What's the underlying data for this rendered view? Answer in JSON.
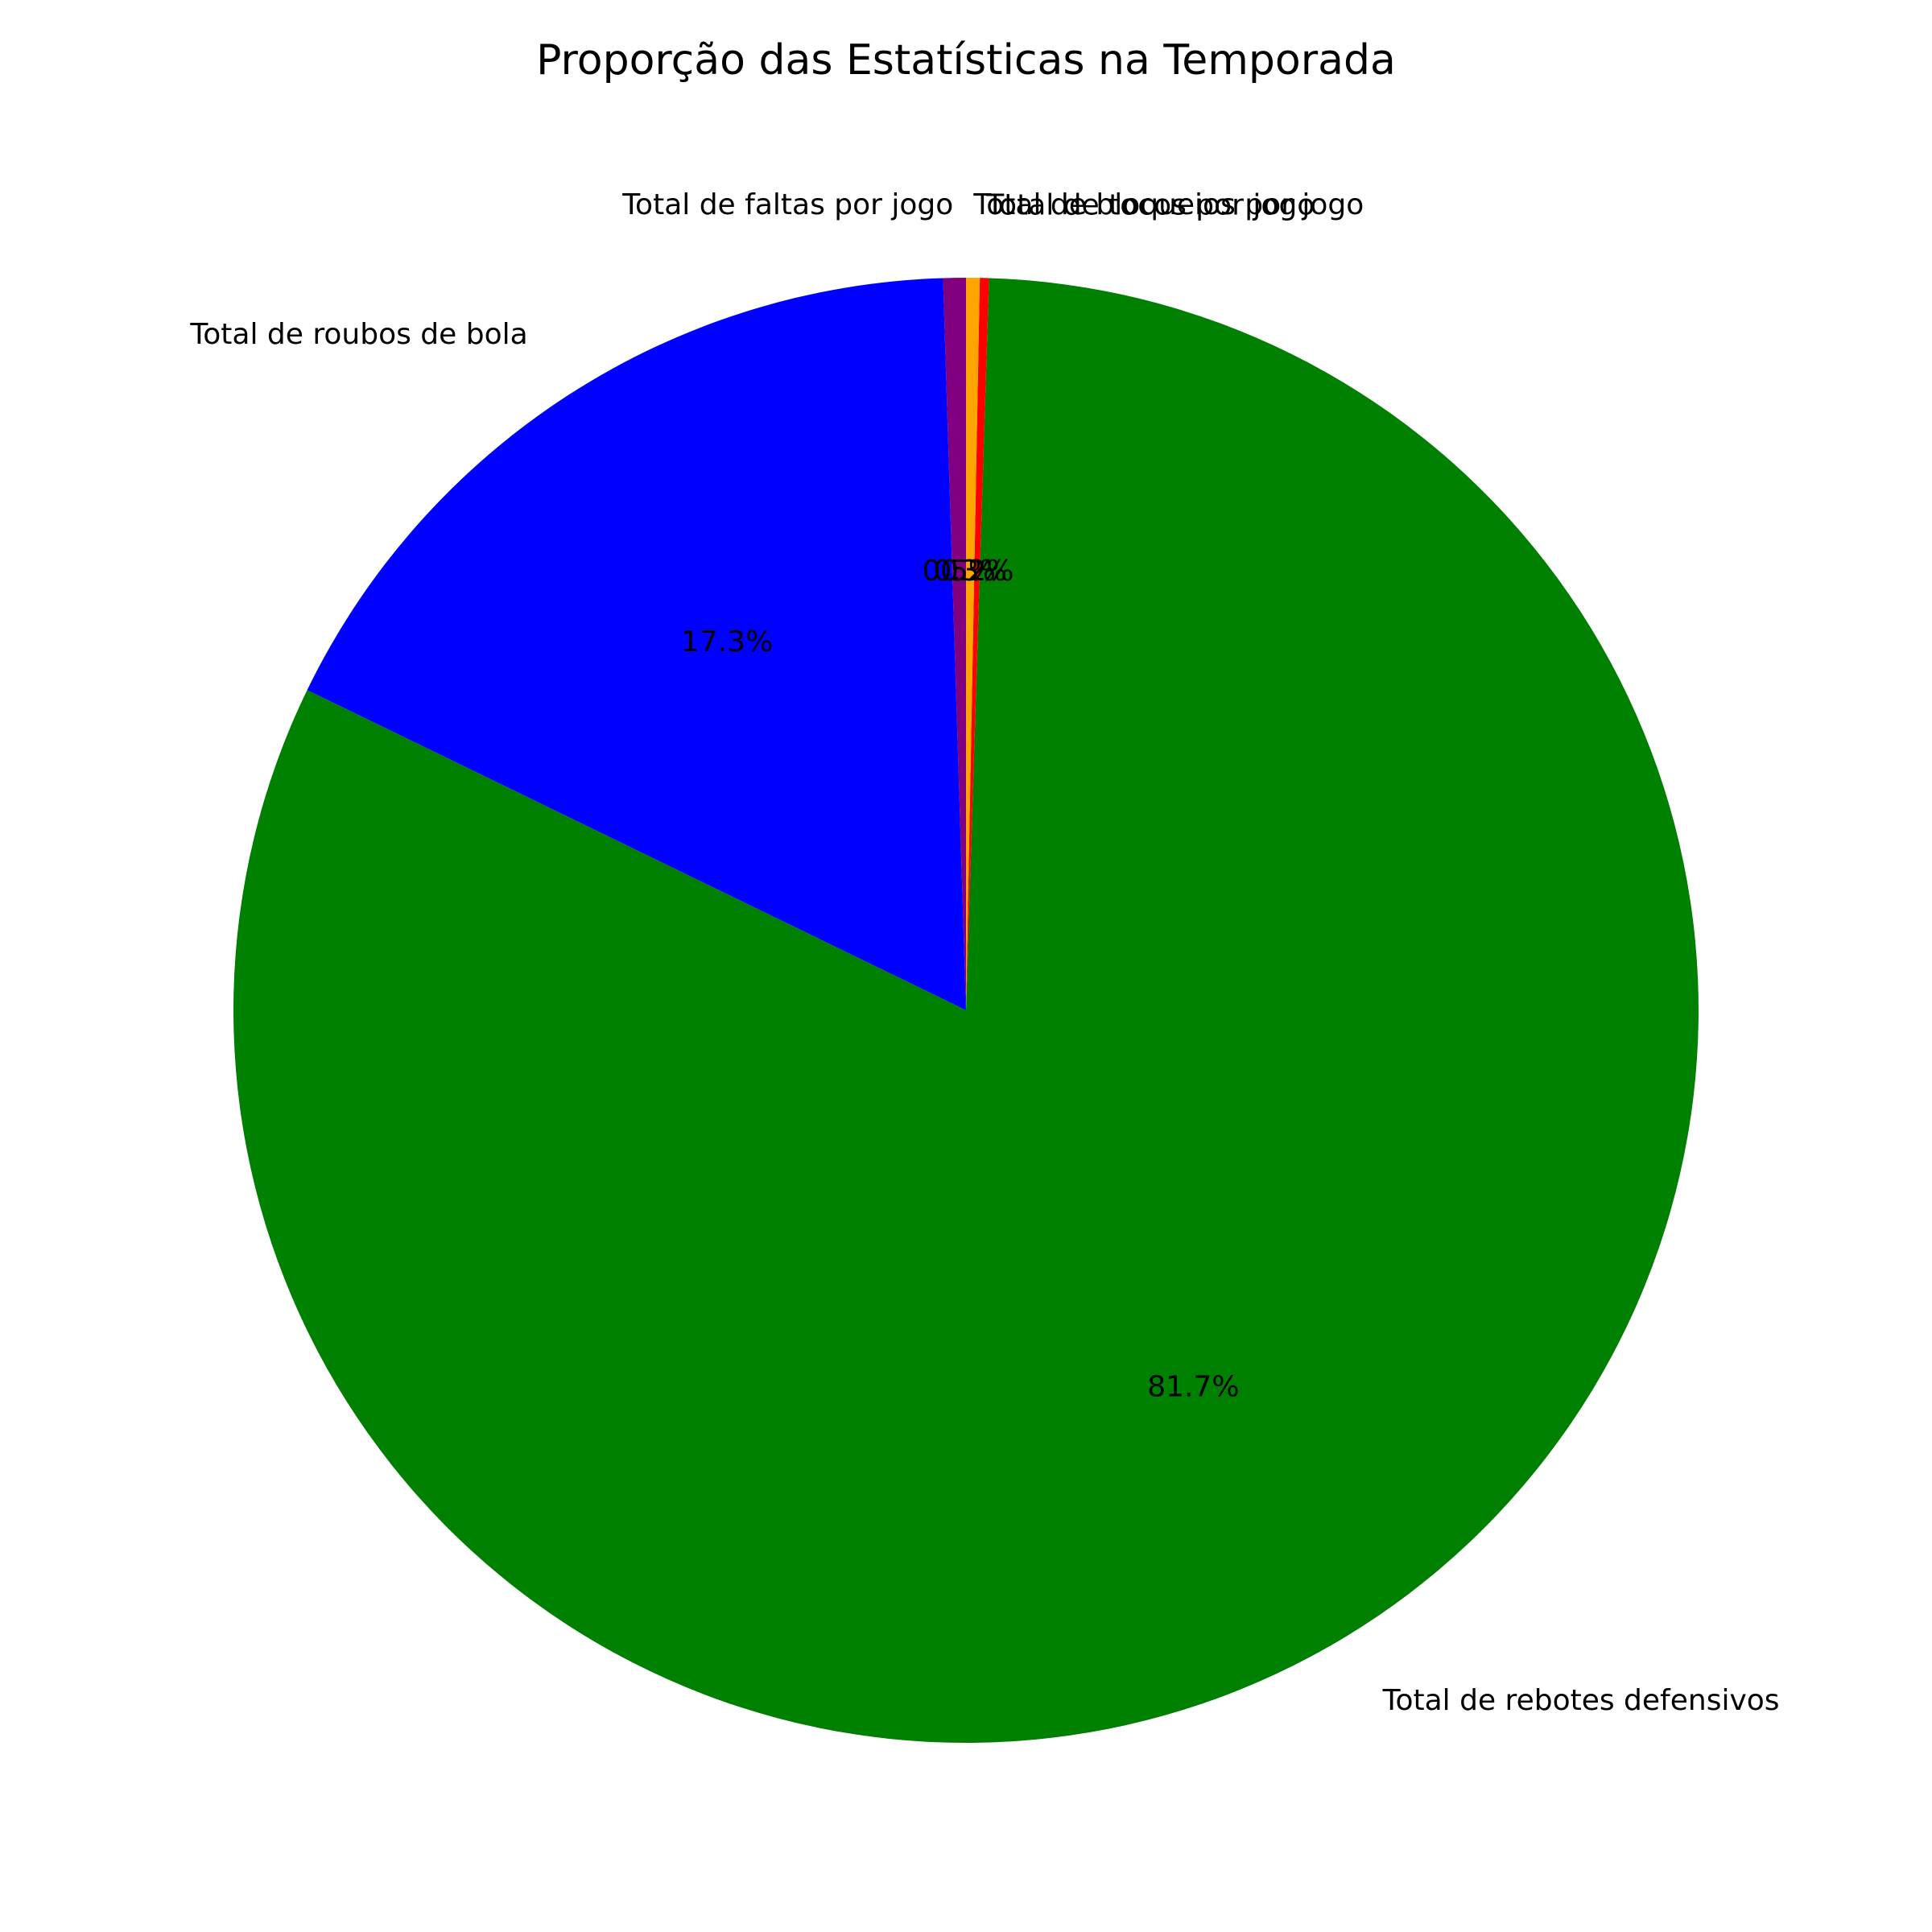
{
  "chart_data": {
    "type": "pie",
    "title": "Proporção das Estatísticas na Temporada",
    "start_angle_deg": 90,
    "direction": "counterclockwise",
    "slices": [
      {
        "label": "Total de faltas por jogo",
        "percent": 0.5,
        "pct_label": "0.5%",
        "color": "#800080"
      },
      {
        "label": "Total de roubos de bola",
        "percent": 17.3,
        "pct_label": "17.3%",
        "color": "#0000ff"
      },
      {
        "label": "Total de rebotes defensivos",
        "percent": 81.7,
        "pct_label": "81.7%",
        "color": "#008000"
      },
      {
        "label": "Total de tocos por jogo",
        "percent": 0.2,
        "pct_label": "0.2%",
        "color": "#ff0000"
      },
      {
        "label": "Total de bloqueios por jogo",
        "percent": 0.3,
        "pct_label": "0.3%",
        "color": "#ffa500"
      }
    ]
  }
}
